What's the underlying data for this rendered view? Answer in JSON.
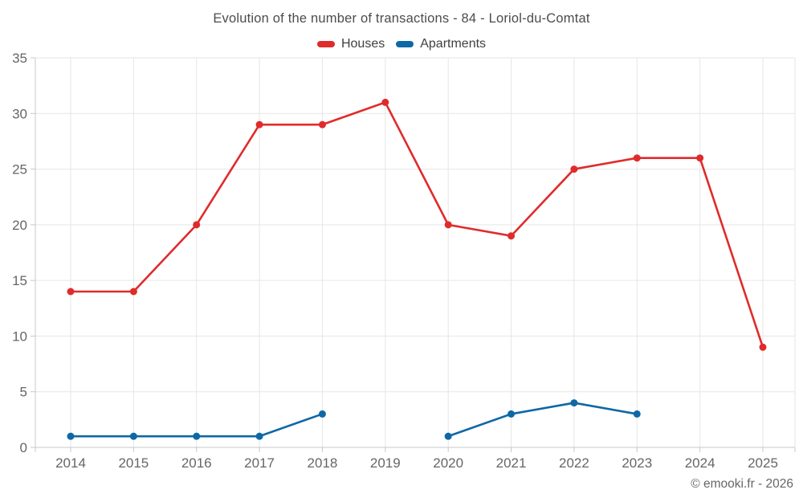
{
  "title": "Evolution of the number of transactions - 84 - Loriol-du-Comtat",
  "attribution": "© emooki.fr - 2026",
  "chart_data": {
    "type": "line",
    "title": "Evolution of the number of transactions - 84 - Loriol-du-Comtat",
    "categories": [
      "2014",
      "2015",
      "2016",
      "2017",
      "2018",
      "2019",
      "2020",
      "2021",
      "2022",
      "2023",
      "2024",
      "2025"
    ],
    "series": [
      {
        "name": "Houses",
        "color": "#e02b2b",
        "values": [
          14,
          14,
          20,
          29,
          29,
          31,
          20,
          19,
          25,
          26,
          26,
          9
        ]
      },
      {
        "name": "Apartments",
        "color": "#0e68a5",
        "values": [
          1,
          1,
          1,
          1,
          3,
          null,
          1,
          3,
          4,
          3,
          null,
          null
        ]
      }
    ],
    "xlabel": "",
    "ylabel": "",
    "ylim": [
      0,
      35
    ],
    "ytick_step": 5,
    "grid": true,
    "legend_position": "top",
    "colors": {
      "background": "#ffffff",
      "grid": "#e6e6e6",
      "axis": "#c8c8c8",
      "tick_labels": "#666666",
      "title": "#4c4c4c"
    }
  }
}
